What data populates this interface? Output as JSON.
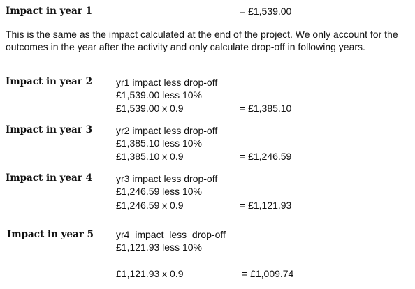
{
  "year1": {
    "heading": "Impact in year 1",
    "result": "= £1,539.00"
  },
  "paragraph": "This is the same as the impact calculated at the end of the project. We only account for the outcomes in the year after the activity and only calculate drop-off in following  years.",
  "year2": {
    "heading": "Impact in year 2",
    "line1": "yr1 impact less drop-off",
    "line2": "£1,539.00 less 10%",
    "line3": "£1,539.00 x 0.9",
    "result": "= £1,385.10"
  },
  "year3": {
    "heading": "Impact in year 3",
    "line1": "yr2 impact less drop-off",
    "line2": "£1,385.10 less 10%",
    "line3": "£1,385.10 x 0.9",
    "result": "= £1,246.59"
  },
  "year4": {
    "heading": "Impact in year 4",
    "line1": "yr3 impact less drop-off",
    "line2": "£1,246.59 less 10%",
    "line3": "£1,246.59 x 0.9",
    "result": "= £1,121.93"
  },
  "year5": {
    "heading": "Impact in year 5",
    "line1": "yr4  impact  less  drop-off",
    "line2": "£1,121.93 less 10%",
    "line3": "£1,121.93 x 0.9",
    "result": "= £1,009.74"
  }
}
